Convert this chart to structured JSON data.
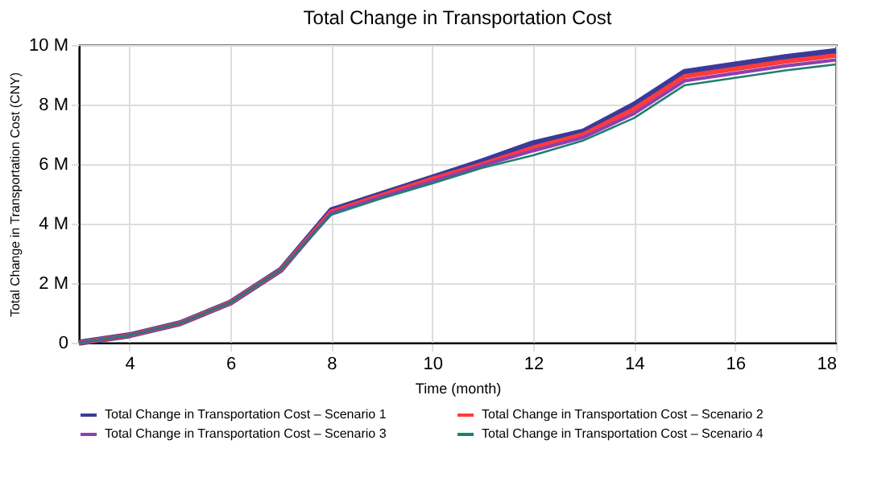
{
  "chart_data": {
    "type": "line",
    "title": "Total Change in Transportation Cost",
    "xlabel": "Time (month)",
    "ylabel": "Total Change in Transportation Cost (CNY)",
    "x": [
      3,
      4,
      5,
      6,
      7,
      8,
      9,
      10,
      11,
      12,
      13,
      14,
      15,
      16,
      17,
      18
    ],
    "series": [
      {
        "name": "Total Change in Transportation Cost – Scenario 1",
        "color": "#3a3a9a",
        "values": [
          0,
          250000,
          650000,
          1350000,
          2450000,
          4450000,
          5000000,
          5550000,
          6100000,
          6700000,
          7100000,
          8000000,
          9100000,
          9350000,
          9600000,
          9800000
        ]
      },
      {
        "name": "Total Change in Transportation Cost – Scenario 2",
        "color": "#ff3b3b",
        "values": [
          0,
          250000,
          650000,
          1350000,
          2450000,
          4400000,
          4950000,
          5500000,
          6000000,
          6550000,
          7000000,
          7850000,
          8950000,
          9200000,
          9450000,
          9650000
        ]
      },
      {
        "name": "Total Change in Transportation Cost – Scenario 3",
        "color": "#8e3fb0",
        "values": [
          0,
          250000,
          650000,
          1350000,
          2450000,
          4350000,
          4900000,
          5420000,
          5950000,
          6450000,
          6900000,
          7700000,
          8800000,
          9050000,
          9300000,
          9500000
        ]
      },
      {
        "name": "Total Change in Transportation Cost – Scenario 4",
        "color": "#1f7f6f",
        "values": [
          0,
          250000,
          650000,
          1350000,
          2450000,
          4300000,
          4850000,
          5350000,
          5880000,
          6300000,
          6800000,
          7550000,
          8650000,
          8900000,
          9150000,
          9350000
        ]
      }
    ],
    "xlim": [
      3,
      18
    ],
    "xticks": [
      4,
      6,
      8,
      10,
      12,
      14,
      16,
      18
    ],
    "ylim": [
      0,
      10000000
    ],
    "yticks": [
      0,
      {
        "value": 2000000,
        "label": "2 M"
      },
      {
        "value": 4000000,
        "label": "4 M"
      },
      {
        "value": 6000000,
        "label": "6 M"
      },
      {
        "value": 8000000,
        "label": "8 M"
      },
      {
        "value": 10000000,
        "label": "10 M"
      }
    ],
    "grid": true,
    "legend": "bottom",
    "marker": "none",
    "line_style": "solid"
  }
}
